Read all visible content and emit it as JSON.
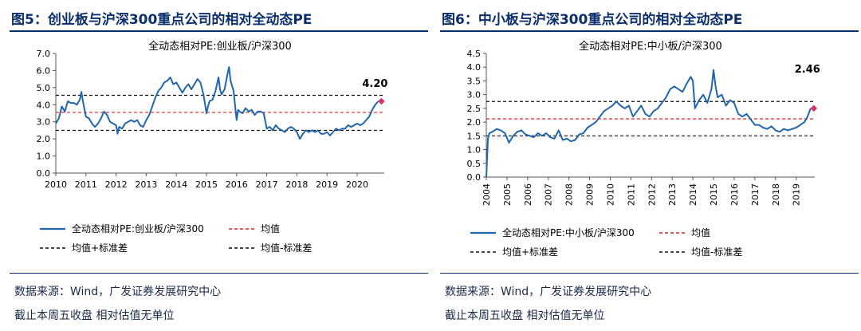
{
  "colors": {
    "line": "#2166ac",
    "mean": "#e02020",
    "band": "#111111",
    "title": "#0b2f6b",
    "marker": "#d6336c"
  },
  "panels": [
    {
      "figure_title": "图5：创业板与沪深300重点公司的相对全动态PE",
      "notes": [
        "数据来源：Wind，广发证券发展研究中心",
        "截止本周五收盘 相对估值无单位"
      ]
    },
    {
      "figure_title": "图6：中小板与沪深300重点公司的相对全动态PE",
      "notes": [
        "数据来源：Wind，广发证券发展研究中心",
        "截止本周五收盘 相对估值无单位"
      ]
    }
  ],
  "chart_data": [
    {
      "type": "line",
      "title": "全动态相对PE:创业板/沪深300",
      "x_ticks": [
        "2010",
        "2011",
        "2012",
        "2013",
        "2014",
        "2015",
        "2016",
        "2017",
        "2018",
        "2019",
        "2020"
      ],
      "xlim": [
        2010,
        2020.9
      ],
      "ylim": [
        0,
        7
      ],
      "y_ticks": [
        "0.0",
        "1.0",
        "2.0",
        "3.0",
        "4.0",
        "5.0",
        "6.0",
        "7.0"
      ],
      "mean": 3.55,
      "upper": 4.55,
      "lower": 2.5,
      "last_label": "4.20",
      "legend": [
        "全动态相对PE:创业板/沪深300",
        "均值",
        "均值+标准差",
        "均值-标准差"
      ],
      "series": [
        {
          "name": "全动态相对PE:创业板/沪深300",
          "x": [
            2010.0,
            2010.1,
            2010.2,
            2010.3,
            2010.4,
            2010.5,
            2010.6,
            2010.7,
            2010.8,
            2010.85,
            2010.9,
            2011.0,
            2011.1,
            2011.2,
            2011.3,
            2011.4,
            2011.5,
            2011.6,
            2011.7,
            2011.8,
            2011.9,
            2012.0,
            2012.05,
            2012.1,
            2012.2,
            2012.3,
            2012.4,
            2012.5,
            2012.6,
            2012.7,
            2012.8,
            2012.9,
            2013.0,
            2013.1,
            2013.2,
            2013.3,
            2013.4,
            2013.5,
            2013.6,
            2013.7,
            2013.8,
            2013.9,
            2014.0,
            2014.1,
            2014.2,
            2014.3,
            2014.4,
            2014.5,
            2014.6,
            2014.7,
            2014.8,
            2014.9,
            2015.0,
            2015.05,
            2015.1,
            2015.2,
            2015.3,
            2015.4,
            2015.45,
            2015.5,
            2015.6,
            2015.7,
            2015.75,
            2015.8,
            2015.9,
            2016.0,
            2016.05,
            2016.1,
            2016.2,
            2016.3,
            2016.4,
            2016.5,
            2016.6,
            2016.7,
            2016.8,
            2016.9,
            2017.0,
            2017.1,
            2017.2,
            2017.3,
            2017.4,
            2017.5,
            2017.6,
            2017.7,
            2017.8,
            2017.9,
            2018.0,
            2018.1,
            2018.2,
            2018.3,
            2018.4,
            2018.5,
            2018.6,
            2018.7,
            2018.8,
            2018.9,
            2019.0,
            2019.1,
            2019.2,
            2019.3,
            2019.4,
            2019.5,
            2019.6,
            2019.7,
            2019.8,
            2019.9,
            2020.0,
            2020.1,
            2020.2,
            2020.3,
            2020.4,
            2020.5,
            2020.6,
            2020.7
          ],
          "y": [
            2.9,
            3.2,
            3.9,
            3.6,
            4.2,
            4.1,
            4.1,
            4.0,
            4.3,
            4.75,
            4.2,
            3.3,
            3.2,
            2.9,
            2.7,
            2.9,
            3.2,
            3.6,
            3.4,
            3.0,
            2.9,
            2.8,
            2.3,
            2.7,
            2.6,
            2.9,
            3.0,
            3.1,
            3.0,
            3.1,
            2.8,
            2.7,
            3.1,
            3.4,
            3.9,
            4.4,
            4.8,
            5.0,
            5.3,
            5.4,
            5.6,
            5.2,
            5.3,
            5.0,
            4.7,
            5.0,
            5.2,
            4.9,
            5.2,
            5.5,
            5.3,
            4.6,
            3.5,
            3.9,
            4.2,
            4.3,
            4.8,
            5.6,
            4.9,
            4.6,
            4.9,
            5.8,
            6.2,
            5.4,
            4.8,
            3.1,
            3.7,
            3.6,
            3.5,
            3.8,
            3.6,
            3.7,
            3.4,
            3.6,
            3.6,
            3.5,
            2.6,
            2.7,
            2.5,
            2.8,
            2.6,
            2.5,
            2.4,
            2.6,
            2.7,
            2.6,
            2.4,
            2.0,
            2.3,
            2.5,
            2.4,
            2.5,
            2.4,
            2.5,
            2.3,
            2.3,
            2.4,
            2.2,
            2.4,
            2.6,
            2.5,
            2.6,
            2.6,
            2.8,
            2.7,
            2.8,
            2.9,
            2.8,
            2.9,
            3.1,
            3.3,
            3.7,
            4.0,
            4.2
          ]
        }
      ]
    },
    {
      "type": "line",
      "title": "全动态相对PE:中小板/沪深300",
      "x_ticks": [
        "2004",
        "2005",
        "2006",
        "2007",
        "2008",
        "2009",
        "2010",
        "2011",
        "2012",
        "2013",
        "2014",
        "2015",
        "2016",
        "2017",
        "2018",
        "2019"
      ],
      "xlim": [
        2004,
        2019.9
      ],
      "ylim": [
        0,
        4.5
      ],
      "y_ticks": [
        "0.0",
        "0.5",
        "1.0",
        "1.5",
        "2.0",
        "2.5",
        "3.0",
        "3.5",
        "4.0",
        "4.5"
      ],
      "mean": 2.12,
      "upper": 2.75,
      "lower": 1.5,
      "last_label": "2.46",
      "legend": [
        "全动态相对PE:中小板/沪深300",
        "均值",
        "均值+标准差",
        "均值-标准差"
      ],
      "series": [
        {
          "name": "全动态相对PE:中小板/沪深300",
          "x": [
            2004.0,
            2004.08,
            2004.15,
            2004.3,
            2004.5,
            2004.7,
            2004.9,
            2005.1,
            2005.3,
            2005.5,
            2005.7,
            2005.9,
            2006.1,
            2006.3,
            2006.5,
            2006.7,
            2006.9,
            2007.1,
            2007.3,
            2007.5,
            2007.7,
            2007.9,
            2008.1,
            2008.3,
            2008.5,
            2008.7,
            2008.9,
            2009.1,
            2009.3,
            2009.5,
            2009.7,
            2009.9,
            2010.1,
            2010.3,
            2010.5,
            2010.7,
            2010.9,
            2011.1,
            2011.3,
            2011.5,
            2011.7,
            2011.9,
            2012.1,
            2012.3,
            2012.5,
            2012.7,
            2012.9,
            2013.1,
            2013.3,
            2013.5,
            2013.7,
            2013.9,
            2014.0,
            2014.1,
            2014.3,
            2014.5,
            2014.7,
            2014.9,
            2015.0,
            2015.1,
            2015.2,
            2015.4,
            2015.6,
            2015.8,
            2016.0,
            2016.2,
            2016.4,
            2016.6,
            2016.8,
            2017.0,
            2017.2,
            2017.4,
            2017.6,
            2017.8,
            2018.0,
            2018.2,
            2018.4,
            2018.6,
            2018.8,
            2019.0,
            2019.2,
            2019.4,
            2019.55,
            2019.7
          ],
          "y": [
            0.0,
            1.4,
            1.6,
            1.65,
            1.75,
            1.7,
            1.6,
            1.25,
            1.5,
            1.65,
            1.7,
            1.55,
            1.5,
            1.45,
            1.6,
            1.5,
            1.6,
            1.45,
            1.4,
            1.7,
            1.35,
            1.4,
            1.3,
            1.35,
            1.55,
            1.6,
            1.8,
            1.9,
            2.0,
            2.2,
            2.4,
            2.5,
            2.6,
            2.75,
            2.6,
            2.5,
            2.6,
            2.2,
            2.4,
            2.6,
            2.3,
            2.2,
            2.4,
            2.5,
            2.7,
            2.9,
            3.2,
            3.3,
            3.2,
            3.1,
            3.4,
            3.65,
            3.5,
            2.5,
            2.8,
            3.0,
            2.7,
            3.2,
            3.9,
            3.3,
            2.9,
            3.0,
            2.6,
            2.8,
            2.7,
            2.3,
            2.2,
            2.3,
            2.1,
            1.9,
            1.9,
            1.8,
            1.75,
            1.85,
            1.7,
            1.65,
            1.75,
            1.7,
            1.75,
            1.8,
            1.9,
            2.0,
            2.2,
            2.5
          ]
        }
      ]
    }
  ]
}
